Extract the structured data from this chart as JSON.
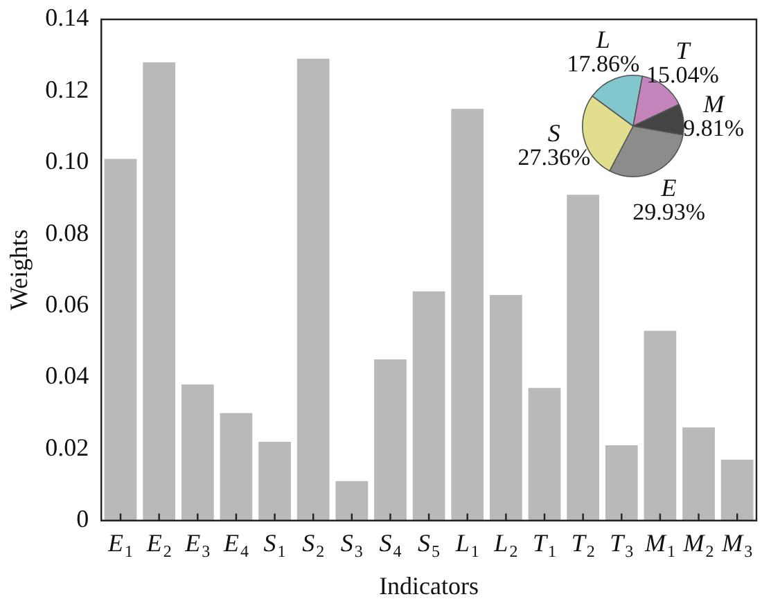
{
  "chart_data": [
    {
      "type": "bar",
      "xlabel": "Indicators",
      "ylabel": "Weights",
      "categories": [
        "E$_{1}$",
        "E$_{2}$",
        "E$_{3}$",
        "E$_{4}$",
        "S$_{1}$",
        "S$_{2}$",
        "S$_{3}$",
        "S$_{4}$",
        "S$_{5}$",
        "L$_{1}$",
        "L$_{2}$",
        "T$_{1}$",
        "T$_{2}$",
        "T$_{3}$",
        "M$_{1}$",
        "M$_{2}$",
        "M$_{3}$"
      ],
      "values": [
        0.101,
        0.128,
        0.038,
        0.03,
        0.022,
        0.129,
        0.011,
        0.045,
        0.064,
        0.115,
        0.063,
        0.037,
        0.091,
        0.021,
        0.053,
        0.026,
        0.017
      ],
      "color": "#b9b9b9",
      "ylim": [
        0,
        0.14
      ],
      "yticks": [
        0,
        0.02,
        0.04,
        0.06,
        0.08,
        {
          "value": 0.1,
          "label": "0.10"
        },
        0.12,
        0.14
      ],
      "grid": false
    },
    {
      "type": "pie",
      "categories": [
        "E",
        "S",
        "L",
        "T",
        "M"
      ],
      "values": [
        29.93,
        27.36,
        17.86,
        15.04,
        9.81
      ],
      "colors": [
        "#8c8c8c",
        "#e2de8e",
        "#82c6ce",
        "#c484bc",
        "#444444"
      ],
      "value_labels": [
        "29.93%",
        "27.36%",
        "17.86%",
        "15.04%",
        "9.81%"
      ]
    }
  ]
}
